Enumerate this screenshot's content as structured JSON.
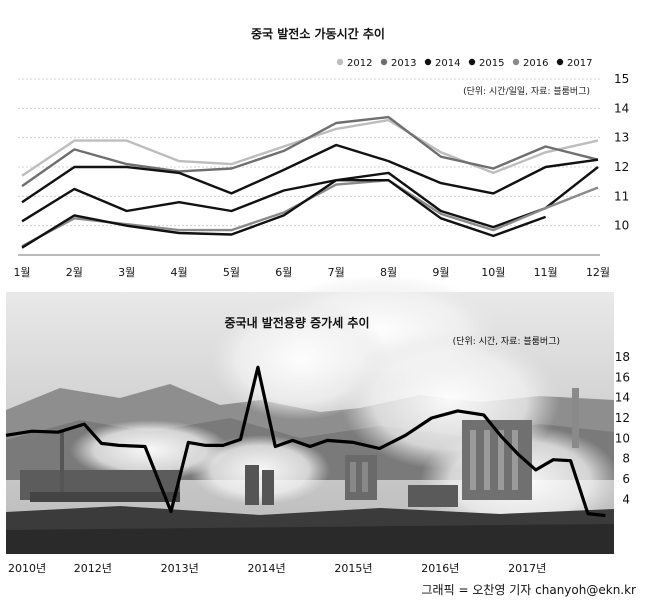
{
  "chart_data": [
    {
      "type": "line",
      "title": "중국 발전소 가동시간 추이",
      "unit_note": "(단위: 시간/일일, 자료: 블룸버그)",
      "categories": [
        "1월",
        "2월",
        "3월",
        "4월",
        "5월",
        "6월",
        "7월",
        "8월",
        "9월",
        "10월",
        "11월",
        "12월"
      ],
      "ylim": [
        9,
        15
      ],
      "yticks": [
        10,
        11,
        12,
        13,
        14,
        15
      ],
      "legend_position": "top-right",
      "series": [
        {
          "name": "2012",
          "color": "#bdbdbd",
          "values": [
            11.7,
            12.9,
            12.9,
            12.2,
            12.1,
            12.7,
            13.3,
            13.6,
            12.5,
            11.8,
            12.5,
            12.9
          ]
        },
        {
          "name": "2013",
          "color": "#6f6f6f",
          "values": [
            11.35,
            12.6,
            12.1,
            11.85,
            11.95,
            12.55,
            13.5,
            13.7,
            12.35,
            11.95,
            12.7,
            12.25
          ]
        },
        {
          "name": "2014",
          "color": "#111111",
          "values": [
            10.8,
            12.0,
            12.0,
            11.8,
            11.1,
            11.9,
            12.75,
            12.2,
            11.45,
            11.1,
            12.0,
            12.25
          ]
        },
        {
          "name": "2015",
          "color": "#111111",
          "values": [
            10.15,
            11.25,
            10.5,
            10.8,
            10.5,
            11.2,
            11.55,
            11.8,
            10.5,
            9.95,
            10.6,
            12.0
          ]
        },
        {
          "name": "2016",
          "color": "#8a8a8a",
          "values": [
            9.3,
            10.25,
            10.05,
            9.85,
            9.85,
            10.45,
            11.4,
            11.55,
            10.4,
            9.85,
            10.6,
            11.3
          ]
        },
        {
          "name": "2017",
          "color": "#111111",
          "values": [
            9.25,
            10.35,
            10.0,
            9.75,
            9.7,
            10.35,
            11.55,
            11.55,
            10.25,
            9.65,
            10.3,
            null
          ]
        }
      ]
    },
    {
      "type": "line",
      "title": "중국내 발전용량 증가세 추이",
      "unit_note": "(단위: 시간, 자료: 블룸버그)",
      "x_labels": [
        "2010년",
        "2012년",
        "2013년",
        "2014년",
        "2015년",
        "2016년",
        "2017년"
      ],
      "x_label_positions": [
        0,
        10,
        20,
        30,
        40,
        50,
        60
      ],
      "xlim": [
        0,
        70
      ],
      "ylim": [
        0,
        18
      ],
      "yticks": [
        4,
        6,
        8,
        10,
        12,
        14,
        16,
        18
      ],
      "series": [
        {
          "name": "",
          "color": "#000000",
          "x": [
            0,
            3,
            6,
            9,
            11,
            13,
            16,
            19,
            21,
            23,
            25,
            27,
            29,
            31,
            33,
            35,
            37,
            40,
            43,
            46,
            49,
            52,
            55,
            57,
            59,
            61,
            63,
            65,
            67,
            69
          ],
          "values": [
            10.3,
            10.7,
            10.6,
            11.4,
            9.5,
            9.3,
            9.2,
            2.8,
            9.6,
            9.3,
            9.3,
            9.9,
            17.0,
            9.2,
            9.8,
            9.2,
            9.8,
            9.6,
            9.0,
            10.3,
            12.0,
            12.7,
            12.3,
            10.2,
            8.4,
            6.9,
            7.9,
            7.8,
            2.6,
            2.4
          ]
        }
      ]
    }
  ],
  "credit": "그래픽 = 오찬영 기자 chanyoh@ekn.kr"
}
